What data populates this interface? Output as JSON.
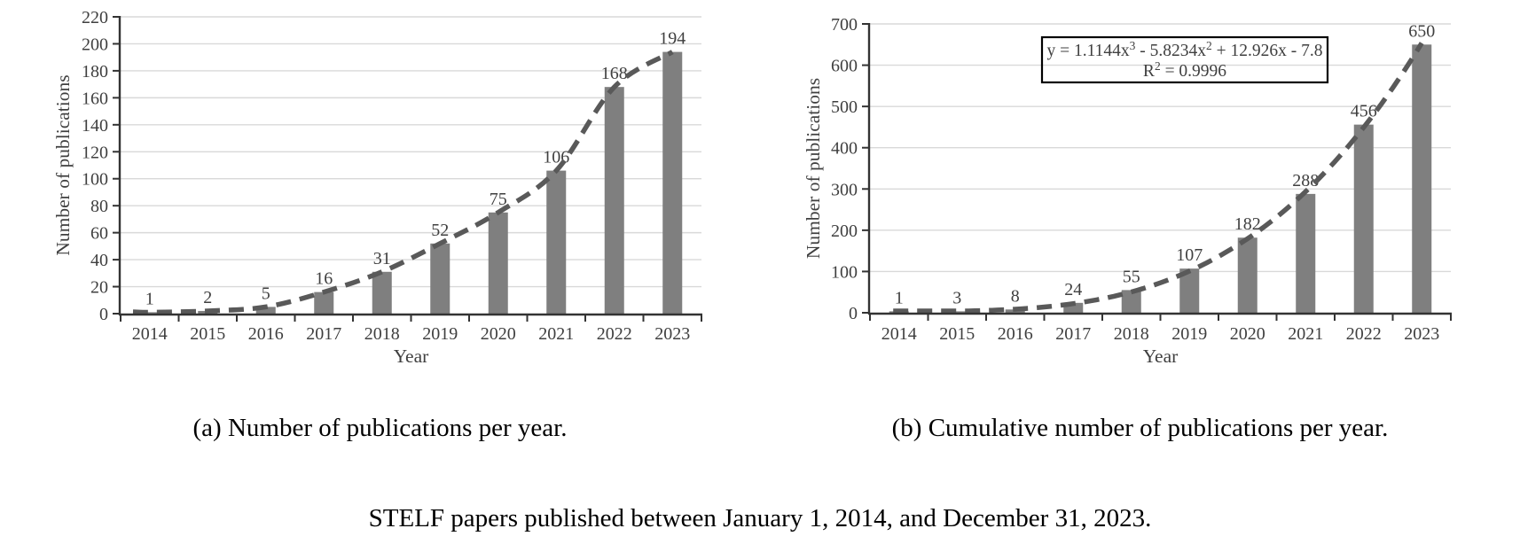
{
  "figure_caption": "STELF papers published between January 1, 2014, and December 31, 2023.",
  "colors": {
    "bar": "#7F7F7F",
    "trendline": "#595959",
    "gridline": "#D9D9D9",
    "axis": "#333333",
    "chart_text": "#3F3F3F",
    "caption_text": "#000000",
    "equation_border": "#000000"
  },
  "chart_data": [
    {
      "panel": "a",
      "type": "bar",
      "title": "(a) Number of publications per year.",
      "categories": [
        "2014",
        "2015",
        "2016",
        "2017",
        "2018",
        "2019",
        "2020",
        "2021",
        "2022",
        "2023"
      ],
      "values": [
        1,
        2,
        5,
        16,
        31,
        52,
        75,
        106,
        168,
        194
      ],
      "xlabel": "Year",
      "ylabel": "Number of publications",
      "ylim": [
        0,
        220
      ],
      "ytick_step": 20,
      "grid": true,
      "legend": "none",
      "bar_value_labels": true,
      "trendline": {
        "style": "dashed",
        "fit": "cubic-through-values"
      }
    },
    {
      "panel": "b",
      "type": "bar",
      "title": "(b) Cumulative number of publications per year.",
      "categories": [
        "2014",
        "2015",
        "2016",
        "2017",
        "2018",
        "2019",
        "2020",
        "2021",
        "2022",
        "2023"
      ],
      "values": [
        1,
        3,
        8,
        24,
        55,
        107,
        182,
        288,
        456,
        650
      ],
      "xlabel": "Year",
      "ylabel": "Number of publications",
      "ylim": [
        0,
        700
      ],
      "ytick_step": 100,
      "grid": true,
      "legend": "none",
      "bar_value_labels": true,
      "trendline": {
        "style": "dashed",
        "fit": "polynomial",
        "coefficients": [
          1.1144,
          -5.8234,
          12.926,
          -7.8
        ]
      },
      "equation_label": {
        "line1": "y = 1.1144x³ - 5.8234x² + 12.926x - 7.8",
        "line2": "R² = 0.9996"
      }
    }
  ]
}
